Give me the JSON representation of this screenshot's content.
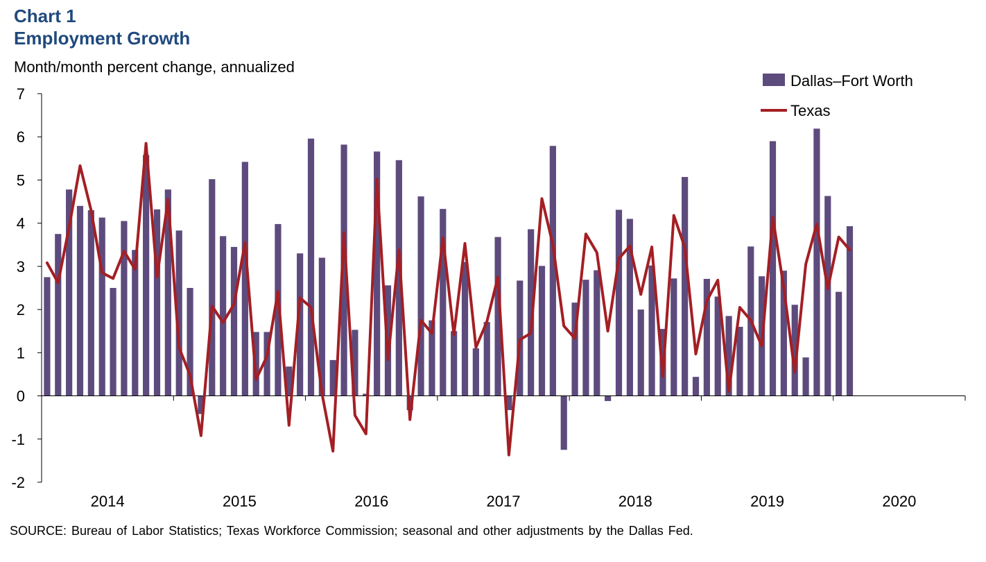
{
  "header": {
    "chart_number": "Chart 1",
    "title": "Employment Growth",
    "ylabel": "Month/month percent change, annualized"
  },
  "footer": {
    "source": "SOURCE: Bureau of Labor Statistics; Texas Workforce Commission; seasonal and other adjustments by the Dallas Fed."
  },
  "chart_data": {
    "type": "bar",
    "title": "Employment Growth",
    "ylabel": "Month/month percent change, annualized",
    "ylim": [
      -2,
      7
    ],
    "yticks": [
      -2,
      -1,
      0,
      1,
      2,
      3,
      4,
      5,
      6,
      7
    ],
    "year_labels": [
      "2014",
      "2015",
      "2016",
      "2017",
      "2018",
      "2019",
      "2020"
    ],
    "months_total": 84,
    "legend_position": "top-right",
    "colors": {
      "bars": "#5d4b7d",
      "line": "#a31f24"
    },
    "series": [
      {
        "name": "Dallas–Fort Worth",
        "kind": "bar",
        "values": [
          2.75,
          3.75,
          4.78,
          4.4,
          4.3,
          4.13,
          2.5,
          4.05,
          3.38,
          5.58,
          4.32,
          4.78,
          3.83,
          2.5,
          -0.42,
          5.02,
          3.7,
          3.45,
          5.42,
          1.48,
          1.48,
          3.98,
          0.68,
          3.3,
          5.96,
          3.2,
          0.83,
          5.82,
          1.53,
          0.05,
          5.66,
          2.56,
          5.46,
          -0.33,
          4.62,
          1.75,
          4.33,
          1.5,
          3.1,
          1.1,
          1.71,
          3.68,
          -0.33,
          2.67,
          3.86,
          3.01,
          5.79,
          -1.25,
          2.16,
          2.69,
          2.91,
          -0.12,
          4.31,
          4.1,
          2.0,
          3.02,
          1.55,
          2.72,
          5.07,
          0.44,
          2.71,
          2.3,
          1.85,
          1.6,
          3.46,
          2.77,
          5.9,
          2.9,
          2.11,
          0.89,
          6.19,
          4.63,
          2.41,
          3.93
        ]
      },
      {
        "name": "Texas",
        "kind": "line",
        "values": [
          3.08,
          2.62,
          3.9,
          5.33,
          4.3,
          2.85,
          2.72,
          3.35,
          2.93,
          5.85,
          2.75,
          4.55,
          1.12,
          0.48,
          -0.92,
          2.08,
          1.7,
          2.12,
          3.55,
          0.38,
          0.92,
          2.42,
          -0.68,
          2.27,
          2.05,
          0.05,
          -1.28,
          3.78,
          -0.45,
          -0.88,
          5.02,
          0.84,
          3.38,
          -0.55,
          1.75,
          1.45,
          3.66,
          1.42,
          3.53,
          1.12,
          1.72,
          2.75,
          -1.37,
          1.3,
          1.45,
          4.57,
          3.5,
          1.62,
          1.33,
          3.75,
          3.32,
          1.5,
          3.18,
          3.47,
          2.35,
          3.45,
          0.45,
          4.18,
          3.44,
          0.97,
          2.2,
          2.68,
          0.1,
          2.05,
          1.75,
          1.16,
          4.14,
          2.5,
          0.55,
          3.05,
          3.98,
          2.48,
          3.68,
          3.38
        ]
      }
    ]
  }
}
